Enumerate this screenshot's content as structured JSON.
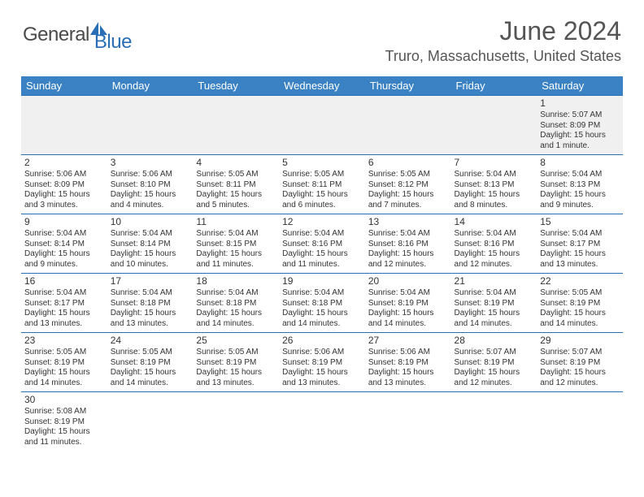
{
  "brand": {
    "part1": "General",
    "part2": "Blue"
  },
  "title": "June 2024",
  "location": "Truro, Massachusetts, United States",
  "colors": {
    "header_bg": "#3b82c4",
    "header_text": "#ffffff",
    "border": "#2a6fb5",
    "text": "#333333",
    "muted_bg": "#f0f0f0",
    "brand_gray": "#4a4a4a",
    "brand_blue": "#2a6fb5"
  },
  "fonts": {
    "title_size": 32,
    "location_size": 18,
    "dayhead_size": 13,
    "cell_size": 10
  },
  "daynames": [
    "Sunday",
    "Monday",
    "Tuesday",
    "Wednesday",
    "Thursday",
    "Friday",
    "Saturday"
  ],
  "weeks": [
    [
      null,
      null,
      null,
      null,
      null,
      null,
      {
        "n": "1",
        "sr": "Sunrise: 5:07 AM",
        "ss": "Sunset: 8:09 PM",
        "d1": "Daylight: 15 hours",
        "d2": "and 1 minute."
      }
    ],
    [
      {
        "n": "2",
        "sr": "Sunrise: 5:06 AM",
        "ss": "Sunset: 8:09 PM",
        "d1": "Daylight: 15 hours",
        "d2": "and 3 minutes."
      },
      {
        "n": "3",
        "sr": "Sunrise: 5:06 AM",
        "ss": "Sunset: 8:10 PM",
        "d1": "Daylight: 15 hours",
        "d2": "and 4 minutes."
      },
      {
        "n": "4",
        "sr": "Sunrise: 5:05 AM",
        "ss": "Sunset: 8:11 PM",
        "d1": "Daylight: 15 hours",
        "d2": "and 5 minutes."
      },
      {
        "n": "5",
        "sr": "Sunrise: 5:05 AM",
        "ss": "Sunset: 8:11 PM",
        "d1": "Daylight: 15 hours",
        "d2": "and 6 minutes."
      },
      {
        "n": "6",
        "sr": "Sunrise: 5:05 AM",
        "ss": "Sunset: 8:12 PM",
        "d1": "Daylight: 15 hours",
        "d2": "and 7 minutes."
      },
      {
        "n": "7",
        "sr": "Sunrise: 5:04 AM",
        "ss": "Sunset: 8:13 PM",
        "d1": "Daylight: 15 hours",
        "d2": "and 8 minutes."
      },
      {
        "n": "8",
        "sr": "Sunrise: 5:04 AM",
        "ss": "Sunset: 8:13 PM",
        "d1": "Daylight: 15 hours",
        "d2": "and 9 minutes."
      }
    ],
    [
      {
        "n": "9",
        "sr": "Sunrise: 5:04 AM",
        "ss": "Sunset: 8:14 PM",
        "d1": "Daylight: 15 hours",
        "d2": "and 9 minutes."
      },
      {
        "n": "10",
        "sr": "Sunrise: 5:04 AM",
        "ss": "Sunset: 8:14 PM",
        "d1": "Daylight: 15 hours",
        "d2": "and 10 minutes."
      },
      {
        "n": "11",
        "sr": "Sunrise: 5:04 AM",
        "ss": "Sunset: 8:15 PM",
        "d1": "Daylight: 15 hours",
        "d2": "and 11 minutes."
      },
      {
        "n": "12",
        "sr": "Sunrise: 5:04 AM",
        "ss": "Sunset: 8:16 PM",
        "d1": "Daylight: 15 hours",
        "d2": "and 11 minutes."
      },
      {
        "n": "13",
        "sr": "Sunrise: 5:04 AM",
        "ss": "Sunset: 8:16 PM",
        "d1": "Daylight: 15 hours",
        "d2": "and 12 minutes."
      },
      {
        "n": "14",
        "sr": "Sunrise: 5:04 AM",
        "ss": "Sunset: 8:16 PM",
        "d1": "Daylight: 15 hours",
        "d2": "and 12 minutes."
      },
      {
        "n": "15",
        "sr": "Sunrise: 5:04 AM",
        "ss": "Sunset: 8:17 PM",
        "d1": "Daylight: 15 hours",
        "d2": "and 13 minutes."
      }
    ],
    [
      {
        "n": "16",
        "sr": "Sunrise: 5:04 AM",
        "ss": "Sunset: 8:17 PM",
        "d1": "Daylight: 15 hours",
        "d2": "and 13 minutes."
      },
      {
        "n": "17",
        "sr": "Sunrise: 5:04 AM",
        "ss": "Sunset: 8:18 PM",
        "d1": "Daylight: 15 hours",
        "d2": "and 13 minutes."
      },
      {
        "n": "18",
        "sr": "Sunrise: 5:04 AM",
        "ss": "Sunset: 8:18 PM",
        "d1": "Daylight: 15 hours",
        "d2": "and 14 minutes."
      },
      {
        "n": "19",
        "sr": "Sunrise: 5:04 AM",
        "ss": "Sunset: 8:18 PM",
        "d1": "Daylight: 15 hours",
        "d2": "and 14 minutes."
      },
      {
        "n": "20",
        "sr": "Sunrise: 5:04 AM",
        "ss": "Sunset: 8:19 PM",
        "d1": "Daylight: 15 hours",
        "d2": "and 14 minutes."
      },
      {
        "n": "21",
        "sr": "Sunrise: 5:04 AM",
        "ss": "Sunset: 8:19 PM",
        "d1": "Daylight: 15 hours",
        "d2": "and 14 minutes."
      },
      {
        "n": "22",
        "sr": "Sunrise: 5:05 AM",
        "ss": "Sunset: 8:19 PM",
        "d1": "Daylight: 15 hours",
        "d2": "and 14 minutes."
      }
    ],
    [
      {
        "n": "23",
        "sr": "Sunrise: 5:05 AM",
        "ss": "Sunset: 8:19 PM",
        "d1": "Daylight: 15 hours",
        "d2": "and 14 minutes."
      },
      {
        "n": "24",
        "sr": "Sunrise: 5:05 AM",
        "ss": "Sunset: 8:19 PM",
        "d1": "Daylight: 15 hours",
        "d2": "and 14 minutes."
      },
      {
        "n": "25",
        "sr": "Sunrise: 5:05 AM",
        "ss": "Sunset: 8:19 PM",
        "d1": "Daylight: 15 hours",
        "d2": "and 13 minutes."
      },
      {
        "n": "26",
        "sr": "Sunrise: 5:06 AM",
        "ss": "Sunset: 8:19 PM",
        "d1": "Daylight: 15 hours",
        "d2": "and 13 minutes."
      },
      {
        "n": "27",
        "sr": "Sunrise: 5:06 AM",
        "ss": "Sunset: 8:19 PM",
        "d1": "Daylight: 15 hours",
        "d2": "and 13 minutes."
      },
      {
        "n": "28",
        "sr": "Sunrise: 5:07 AM",
        "ss": "Sunset: 8:19 PM",
        "d1": "Daylight: 15 hours",
        "d2": "and 12 minutes."
      },
      {
        "n": "29",
        "sr": "Sunrise: 5:07 AM",
        "ss": "Sunset: 8:19 PM",
        "d1": "Daylight: 15 hours",
        "d2": "and 12 minutes."
      }
    ],
    [
      {
        "n": "30",
        "sr": "Sunrise: 5:08 AM",
        "ss": "Sunset: 8:19 PM",
        "d1": "Daylight: 15 hours",
        "d2": "and 11 minutes."
      },
      null,
      null,
      null,
      null,
      null,
      null
    ]
  ]
}
